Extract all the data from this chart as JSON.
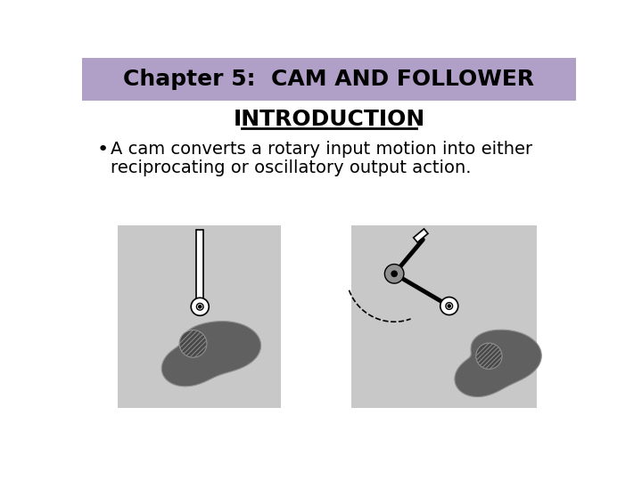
{
  "title_line1": "Chapter 5:  CAM AND FOLLOWER",
  "title_line2": "INTRODUCTION",
  "title_bg_color": "#b0a0c8",
  "title_text_color": "#000000",
  "bullet_text_line1": "A cam converts a rotary input motion into either",
  "bullet_text_line2": "reciprocating or oscillatory output action.",
  "bg_color": "#ffffff",
  "image_bg_color": "#c8c8c8",
  "cam_color": "#606060",
  "cam_inner_color": "#484848"
}
